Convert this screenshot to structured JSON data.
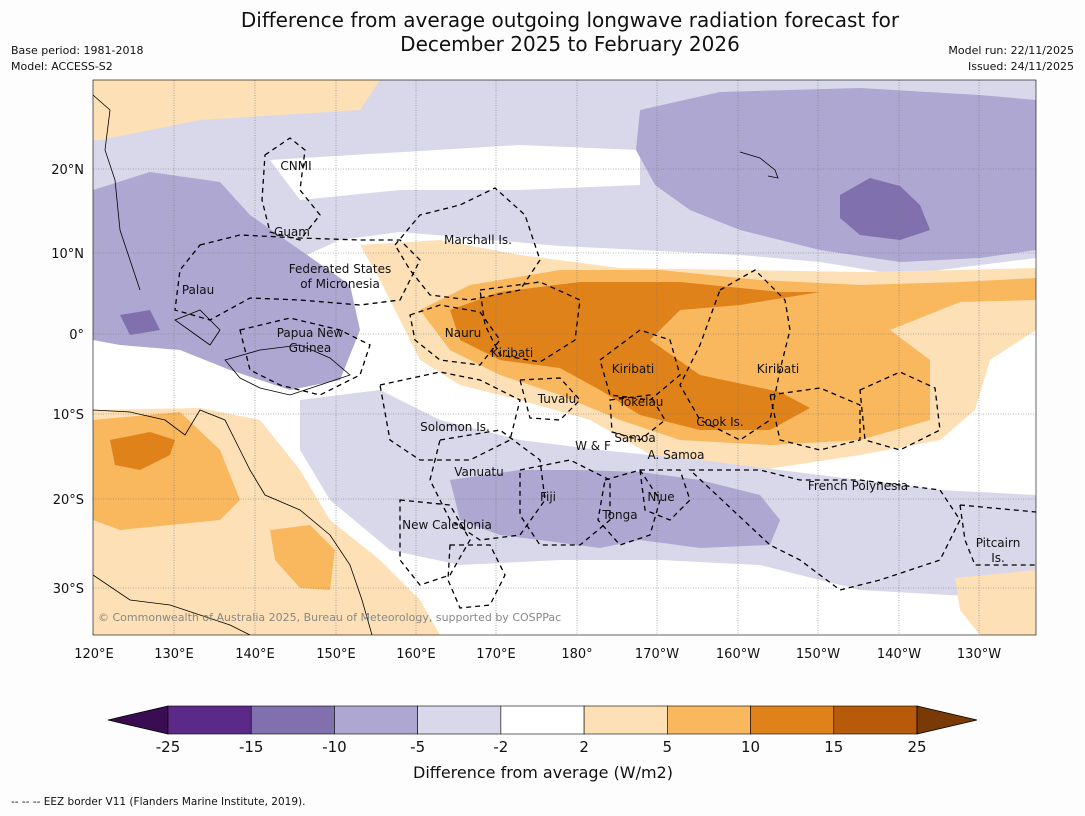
{
  "title": {
    "line1": "Difference from average outgoing longwave radiation forecast for",
    "line2": "December 2025 to February 2026"
  },
  "meta": {
    "base_period": "Base period: 1981-2018",
    "model": "Model: ACCESS-S2",
    "model_run": "Model run: 22/11/2025",
    "issued": "Issued: 24/11/2025"
  },
  "axes": {
    "lon_labels": [
      "120°E",
      "130°E",
      "140°E",
      "150°E",
      "160°E",
      "170°E",
      "180°",
      "170°W",
      "160°W",
      "150°W",
      "140°W",
      "130°W"
    ],
    "lat_labels": [
      "20°N",
      "10°N",
      "0°",
      "10°S",
      "20°S",
      "30°S"
    ]
  },
  "places": [
    {
      "id": "cnmi",
      "text": "CNMI"
    },
    {
      "id": "guam",
      "text": "Guam"
    },
    {
      "id": "marshall",
      "text": "Marshall Is."
    },
    {
      "id": "fsm1",
      "text": "Federated States"
    },
    {
      "id": "fsm2",
      "text": "of Micronesia"
    },
    {
      "id": "palau",
      "text": "Palau"
    },
    {
      "id": "png1",
      "text": "Papua New"
    },
    {
      "id": "png2",
      "text": "Guinea"
    },
    {
      "id": "nauru",
      "text": "Nauru"
    },
    {
      "id": "kiribati-w",
      "text": "Kiribati"
    },
    {
      "id": "kiribati-c",
      "text": "Kiribati"
    },
    {
      "id": "kiribati-e",
      "text": "Kiribati"
    },
    {
      "id": "tuvalu",
      "text": "Tuvalu"
    },
    {
      "id": "tokelau",
      "text": "Tokelau"
    },
    {
      "id": "cook",
      "text": "Cook Is."
    },
    {
      "id": "solomon",
      "text": "Solomon Is."
    },
    {
      "id": "wf",
      "text": "W & F"
    },
    {
      "id": "samoa",
      "text": "Samoa"
    },
    {
      "id": "asamoa",
      "text": "A. Samoa"
    },
    {
      "id": "vanuatu",
      "text": "Vanuatu"
    },
    {
      "id": "fiji",
      "text": "Fiji"
    },
    {
      "id": "niue",
      "text": "Niue"
    },
    {
      "id": "tonga",
      "text": "Tonga"
    },
    {
      "id": "frpoly",
      "text": "French Polynesia"
    },
    {
      "id": "newcal",
      "text": "New Caledonia"
    },
    {
      "id": "pitcairn1",
      "text": "Pitcairn"
    },
    {
      "id": "pitcairn2",
      "text": "Is."
    }
  ],
  "attribution": "© Commonwealth of Australia 2025, Bureau of Meteorology, supported by COSPPac",
  "colorbar": {
    "label": "Difference from average (W/m2)",
    "ticks": [
      "-25",
      "-15",
      "-10",
      "-5",
      "-2",
      "2",
      "5",
      "10",
      "15",
      "25"
    ],
    "colors": [
      "#3a0d52",
      "#5b2a88",
      "#8070ae",
      "#aea7d2",
      "#d8d8ea",
      "#ffffff",
      "#fde0b5",
      "#f9b75e",
      "#e0821a",
      "#b75a09",
      "#7a3a05"
    ]
  },
  "footnote": "--  --  -- EEZ border V11 (Flanders Marine Institute, 2019)."
}
